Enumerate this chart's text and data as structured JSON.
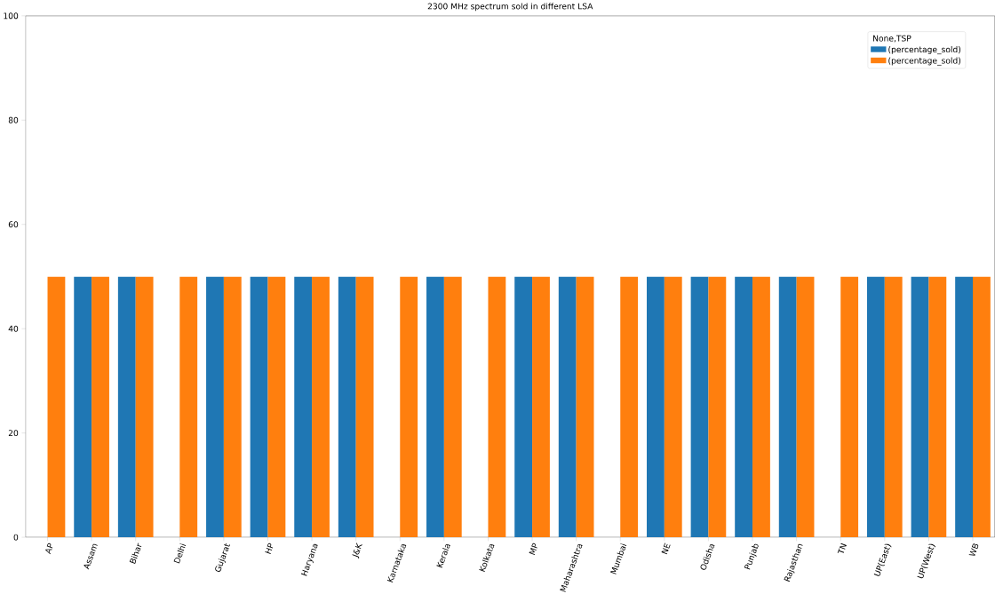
{
  "chart_data": {
    "type": "bar",
    "title": "2300 MHz spectrum sold in different LSA",
    "categories": [
      "AP",
      "Assam",
      "Bihar",
      "Delhi",
      "Gujarat",
      "HP",
      "Haryana",
      "J&K",
      "Karnataka",
      "Kerala",
      "Kolkata",
      "MP",
      "Maharashtra",
      "Mumbai",
      "NE",
      "Odisha",
      "Punjab",
      "Rajasthan",
      "TN",
      "UP(East)",
      "UP(West)",
      "WB"
    ],
    "series": [
      {
        "name": "(percentage_sold)",
        "color": "#1f77b4",
        "values": [
          null,
          50,
          50,
          null,
          50,
          50,
          50,
          50,
          null,
          50,
          null,
          50,
          50,
          null,
          50,
          50,
          50,
          50,
          null,
          50,
          50,
          50
        ]
      },
      {
        "name": "(percentage_sold)",
        "color": "#ff7f0e",
        "values": [
          50,
          50,
          50,
          50,
          50,
          50,
          50,
          50,
          50,
          50,
          50,
          50,
          50,
          50,
          50,
          50,
          50,
          50,
          50,
          50,
          50,
          50
        ]
      }
    ],
    "legend_title": "None,TSP",
    "legend": "top right",
    "grid": false,
    "ylim": [
      0,
      100
    ],
    "yticks": [
      0,
      20,
      40,
      60,
      80,
      100
    ]
  }
}
